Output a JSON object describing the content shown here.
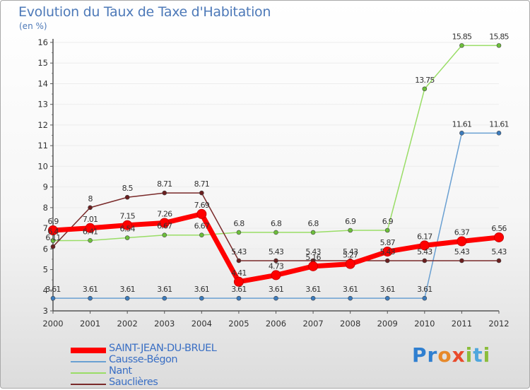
{
  "title": "Evolution du Taux de Taxe d'Habitation",
  "unit_label": "(en %)",
  "brand": {
    "text": "Proxiti",
    "letters": [
      "P",
      "r",
      "o",
      "x",
      "i",
      "t",
      "i"
    ],
    "colors": [
      "#2f7fd0",
      "#2f7fd0",
      "#e7892a",
      "#e94a2b",
      "#8bbd3b",
      "#4fa6dd",
      "#8bbd3b"
    ]
  },
  "legend": [
    {
      "name": "SAINT-JEAN-DU-BRUEL",
      "color": "#ff0000"
    },
    {
      "name": "Causse-Bégon",
      "color": "#6aa0d2"
    },
    {
      "name": "Nant",
      "color": "#99dd66"
    },
    {
      "name": "Sauclières",
      "color": "#7a2a2a"
    }
  ],
  "chart_data": {
    "type": "line",
    "title": "Evolution du Taux de Taxe d'Habitation",
    "ylabel": "(en %)",
    "xlabel": "",
    "ylim": [
      3,
      16
    ],
    "yticks": [
      3,
      4,
      5,
      6,
      7,
      8,
      9,
      10,
      11,
      12,
      13,
      14,
      15,
      16
    ],
    "categories": [
      "2000",
      "2001",
      "2002",
      "2003",
      "2004",
      "2005",
      "2006",
      "2007",
      "2008",
      "2009",
      "2010",
      "2011",
      "2012"
    ],
    "series": [
      {
        "name": "Causse-Bégon",
        "color": "#6aa0d2",
        "marker": "#3b7bbd",
        "values": [
          3.61,
          3.61,
          3.61,
          3.61,
          3.61,
          3.61,
          3.61,
          3.61,
          3.61,
          3.61,
          3.61,
          11.61,
          11.61
        ],
        "labels": [
          "3.61",
          "3.61",
          "3.61",
          "3.61",
          "3.61",
          "3.61",
          "3.61",
          "3.61",
          "3.61",
          "3.61",
          "3.61",
          "11.61",
          "11.61"
        ]
      },
      {
        "name": "Nant",
        "color": "#99dd66",
        "marker": "#6cbf3a",
        "values": [
          6.4,
          6.41,
          6.54,
          6.67,
          6.67,
          6.8,
          6.8,
          6.8,
          6.9,
          6.9,
          13.75,
          15.85,
          15.85
        ],
        "labels": [
          "6.4",
          "6.41",
          "6.54",
          "6.67",
          "6.67",
          "6.8",
          "6.8",
          "6.8",
          "6.9",
          "6.9",
          "13.75",
          "15.85",
          "15.85"
        ]
      },
      {
        "name": "Sauclières",
        "color": "#7a2a2a",
        "marker": "#6b1f1f",
        "values": [
          6.11,
          8,
          8.5,
          8.71,
          8.71,
          5.43,
          5.43,
          5.43,
          5.43,
          5.43,
          5.43,
          5.43,
          5.43
        ],
        "labels": [
          "6.11",
          "8",
          "8.5",
          "8.71",
          "8.71",
          "5.43",
          "5.43",
          "5.43",
          "5.43",
          "5.43",
          "5.43",
          "5.43",
          "5.43"
        ]
      },
      {
        "name": "SAINT-JEAN-DU-BRUEL",
        "color": "#ff0000",
        "marker": "#ff0000",
        "values": [
          6.9,
          7.01,
          7.15,
          7.26,
          7.69,
          4.41,
          4.73,
          5.16,
          5.27,
          5.87,
          6.17,
          6.37,
          6.56
        ],
        "labels": [
          "6.9",
          "7.01",
          "7.15",
          "7.26",
          "7.69",
          "4.41",
          "4.73",
          "5.16",
          "5.27",
          "5.87",
          "6.17",
          "6.37",
          "6.56"
        ]
      }
    ]
  }
}
